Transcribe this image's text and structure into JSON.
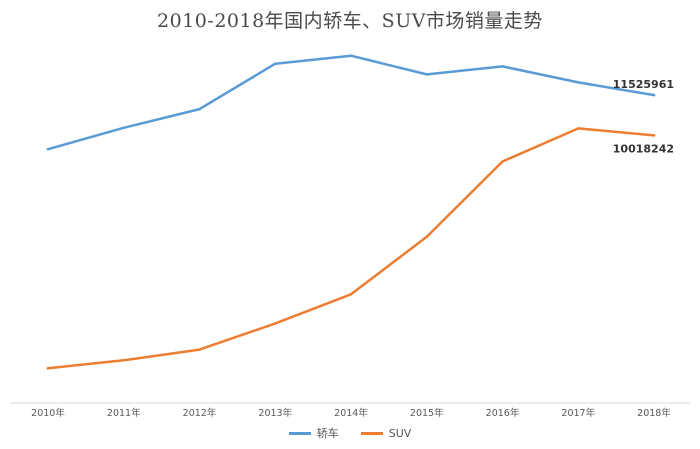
{
  "chart_data": {
    "type": "line",
    "title": "2010-2018年国内轿车、SUV市场销量走势",
    "xlabel": "",
    "ylabel": "",
    "categories": [
      "2010年",
      "2011年",
      "2012年",
      "2013年",
      "2014年",
      "2015年",
      "2016年",
      "2017年",
      "2018年"
    ],
    "ylim": [
      0,
      14000000
    ],
    "grid": false,
    "legend_position": "bottom",
    "series": [
      {
        "name": "轿车",
        "color": "#5b9bd5",
        "values": [
          9500000,
          10300000,
          11000000,
          12700000,
          13000000,
          12300000,
          12600000,
          12000000,
          11525961
        ],
        "end_label": "11525961"
      },
      {
        "name": "SUV",
        "color": "#ed7d31",
        "values": [
          1300000,
          1600000,
          2000000,
          2980000,
          4070000,
          6220000,
          9040000,
          10280000,
          10018242
        ],
        "end_label": "10018242"
      }
    ]
  }
}
